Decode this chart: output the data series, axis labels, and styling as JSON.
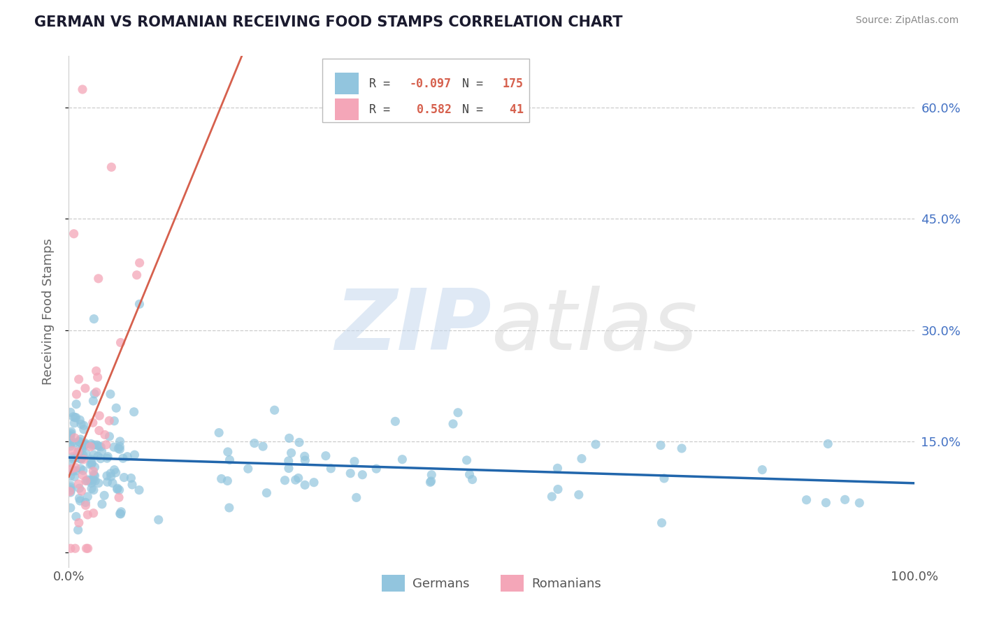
{
  "title": "GERMAN VS ROMANIAN RECEIVING FOOD STAMPS CORRELATION CHART",
  "source": "Source: ZipAtlas.com",
  "ylabel": "Receiving Food Stamps",
  "yticks": [
    0.0,
    0.15,
    0.3,
    0.45,
    0.6
  ],
  "ytick_labels": [
    "",
    "15.0%",
    "30.0%",
    "45.0%",
    "60.0%"
  ],
  "xlim": [
    0.0,
    1.0
  ],
  "ylim": [
    -0.02,
    0.67
  ],
  "german_R": -0.097,
  "german_N": 175,
  "romanian_R": 0.582,
  "romanian_N": 41,
  "blue_color": "#92c5de",
  "pink_color": "#f4a6b8",
  "blue_line_color": "#2166ac",
  "pink_line_color": "#d6604d",
  "watermark_zip_color": "#c5d8ed",
  "watermark_atlas_color": "#d8d8d8",
  "legend_german": "Germans",
  "legend_romanian": "Romanians",
  "background_color": "#ffffff",
  "grid_color": "#cccccc",
  "title_color": "#1a1a2e",
  "right_tick_color": "#4472c4",
  "legend_value_color": "#d6604d",
  "legend_label_color": "#444444"
}
